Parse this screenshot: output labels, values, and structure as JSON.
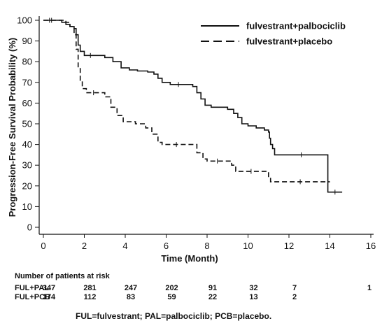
{
  "chart_data": {
    "type": "line",
    "title": "",
    "xlabel": "Time (Month)",
    "ylabel": "Progression-Free Survival Probability (%)",
    "xlim": [
      0,
      16
    ],
    "ylim": [
      0,
      100
    ],
    "x_ticks": [
      "0",
      "2",
      "4",
      "6",
      "8",
      "10",
      "12",
      "14",
      "16"
    ],
    "y_ticks": [
      "0",
      "10",
      "20",
      "30",
      "40",
      "50",
      "60",
      "70",
      "80",
      "90",
      "100"
    ],
    "grid": false,
    "legend_position": "top-right",
    "series": [
      {
        "name": "fulvestrant+palbociclib",
        "style": "solid",
        "color": "#111111",
        "points": [
          [
            0,
            100
          ],
          [
            0.6,
            100
          ],
          [
            0.9,
            99
          ],
          [
            1.1,
            98
          ],
          [
            1.3,
            97
          ],
          [
            1.5,
            96
          ],
          [
            1.6,
            93
          ],
          [
            1.7,
            88
          ],
          [
            1.8,
            85
          ],
          [
            2.0,
            83
          ],
          [
            2.6,
            83
          ],
          [
            3.0,
            82
          ],
          [
            3.4,
            80
          ],
          [
            3.8,
            77
          ],
          [
            4.2,
            76
          ],
          [
            4.6,
            75.5
          ],
          [
            5.1,
            75
          ],
          [
            5.4,
            74
          ],
          [
            5.6,
            72
          ],
          [
            5.8,
            70
          ],
          [
            6.2,
            69
          ],
          [
            7.0,
            69
          ],
          [
            7.3,
            68
          ],
          [
            7.5,
            65
          ],
          [
            7.7,
            62
          ],
          [
            7.9,
            59
          ],
          [
            8.2,
            58
          ],
          [
            9.0,
            57
          ],
          [
            9.3,
            55
          ],
          [
            9.5,
            53
          ],
          [
            9.7,
            50
          ],
          [
            10.0,
            49
          ],
          [
            10.4,
            48
          ],
          [
            10.8,
            47
          ],
          [
            11.0,
            46
          ],
          [
            11.05,
            43
          ],
          [
            11.1,
            40
          ],
          [
            11.2,
            38
          ],
          [
            11.3,
            35
          ],
          [
            13.9,
            35
          ],
          [
            13.9,
            17
          ],
          [
            14.6,
            17
          ]
        ]
      },
      {
        "name": "fulvestrant+placebo",
        "style": "dashed",
        "color": "#111111",
        "points": [
          [
            0,
            100
          ],
          [
            0.8,
            100
          ],
          [
            1.1,
            99
          ],
          [
            1.3,
            97
          ],
          [
            1.5,
            93
          ],
          [
            1.6,
            86
          ],
          [
            1.7,
            77
          ],
          [
            1.8,
            71
          ],
          [
            1.9,
            67
          ],
          [
            2.1,
            65
          ],
          [
            2.8,
            65
          ],
          [
            3.0,
            63
          ],
          [
            3.3,
            58
          ],
          [
            3.6,
            54
          ],
          [
            3.9,
            51
          ],
          [
            4.5,
            50
          ],
          [
            5.0,
            48
          ],
          [
            5.3,
            45
          ],
          [
            5.6,
            41
          ],
          [
            5.8,
            40
          ],
          [
            7.2,
            40
          ],
          [
            7.5,
            36
          ],
          [
            7.8,
            33
          ],
          [
            8.0,
            32
          ],
          [
            9.0,
            32
          ],
          [
            9.2,
            30
          ],
          [
            9.4,
            27
          ],
          [
            10.9,
            27
          ],
          [
            11.0,
            24
          ],
          [
            11.1,
            22
          ],
          [
            14.0,
            22
          ]
        ]
      }
    ]
  },
  "risk_table": {
    "title": "Number of patients at risk",
    "rows": [
      {
        "label": "FUL+PAL",
        "counts": [
          "347",
          "281",
          "247",
          "202",
          "91",
          "32",
          "7",
          "1"
        ]
      },
      {
        "label": "FUL+PCB",
        "counts": [
          "174",
          "112",
          "83",
          "59",
          "22",
          "13",
          "2",
          ""
        ]
      }
    ]
  },
  "footnote": "FUL=fulvestrant; PAL=palbociclib; PCB=placebo."
}
